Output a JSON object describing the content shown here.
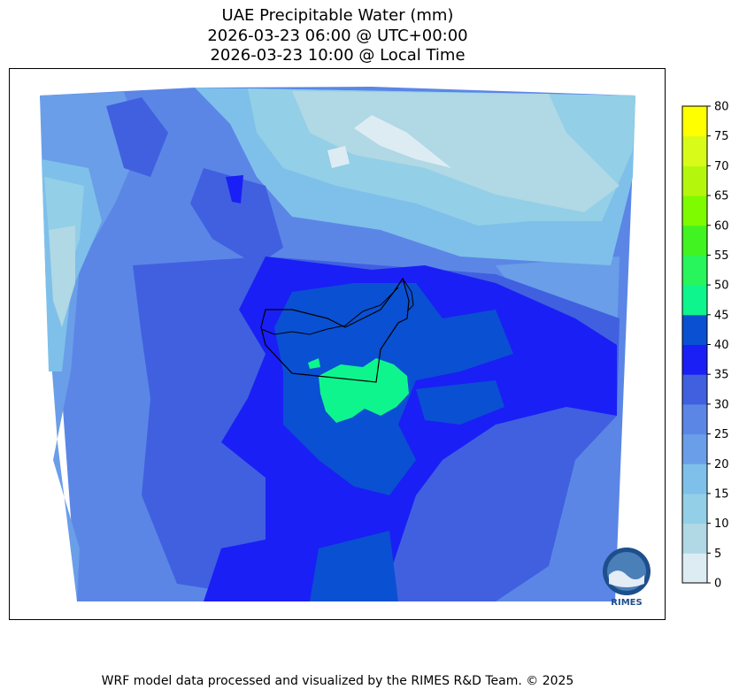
{
  "header": {
    "title_line1": "UAE Precipitable Water (mm)",
    "title_line2": "2026-03-23 06:00 @ UTC+00:00",
    "title_line3": "2026-03-23 10:00 @ Local Time"
  },
  "colorbar": {
    "ticks": [
      "0",
      "5",
      "10",
      "15",
      "20",
      "25",
      "30",
      "35",
      "40",
      "45",
      "50",
      "55",
      "60",
      "65",
      "70",
      "75",
      "80"
    ],
    "colors": [
      "#ddecf3",
      "#b0d8e5",
      "#93cfe6",
      "#7ec0ea",
      "#6a9ee8",
      "#5b86e6",
      "#4060e0",
      "#1a1ff5",
      "#0a50d2",
      "#0ef58e",
      "#27f55b",
      "#41f421",
      "#7ffb00",
      "#b5f70c",
      "#d9fb1a",
      "#ffff00",
      "#ffd700"
    ]
  },
  "logo": {
    "text": "RIMES"
  },
  "footer": {
    "text": "WRF model data processed and visualized by the RIMES R&D Team. © 2025"
  }
}
